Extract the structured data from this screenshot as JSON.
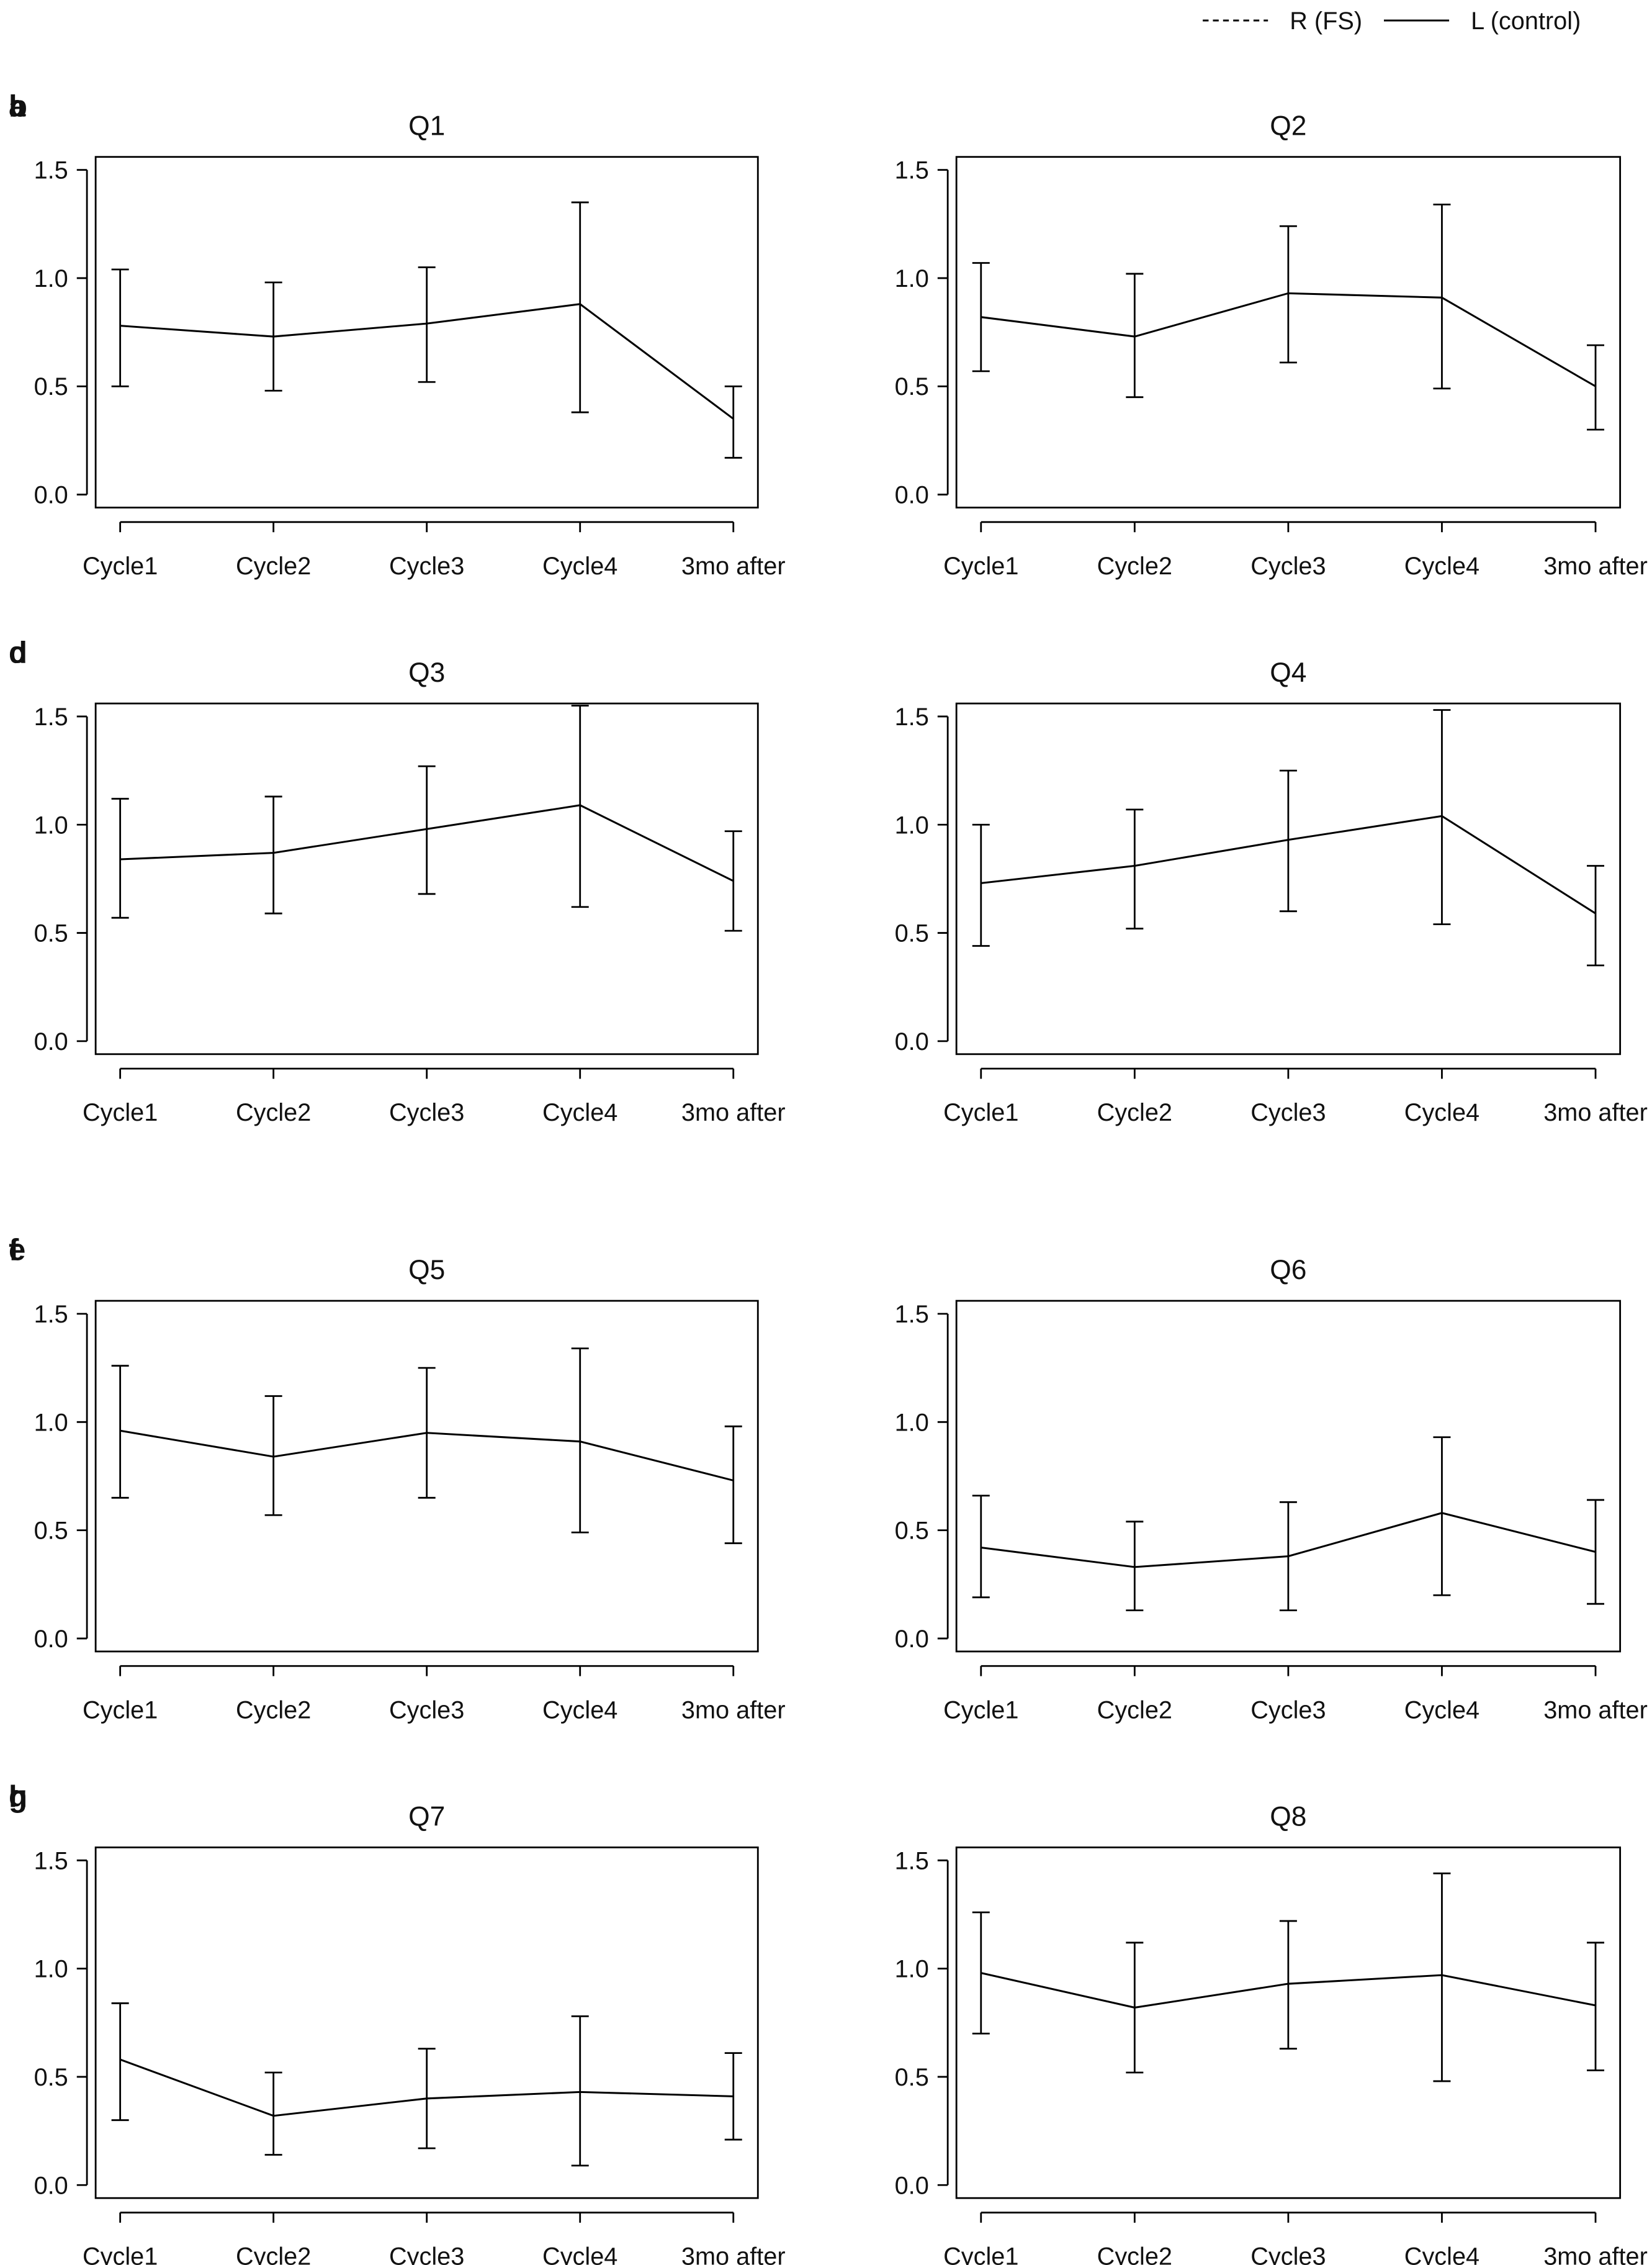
{
  "legend": [
    {
      "label": "R (FS)",
      "linestyle": "dashed"
    },
    {
      "label": "L (control)",
      "linestyle": "solid"
    }
  ],
  "chart_data": [
    {
      "type": "line",
      "panel": "a",
      "title": "Q1",
      "categories": [
        "Cycle1",
        "Cycle2",
        "Cycle3",
        "Cycle4",
        "3mo after"
      ],
      "color": "#000000",
      "values": [
        0.78,
        0.73,
        0.79,
        0.88,
        0.35
      ],
      "lower": [
        0.5,
        0.48,
        0.52,
        0.38,
        0.17
      ],
      "upper": [
        1.04,
        0.98,
        1.05,
        1.35,
        0.5
      ],
      "ylim": [
        -0.06,
        1.56
      ],
      "yticks": [
        {
          "value": 0,
          "label": "0.0"
        },
        0.5,
        {
          "value": 1,
          "label": "1.0"
        },
        1.5
      ]
    },
    {
      "type": "line",
      "panel": "b",
      "title": "Q2",
      "categories": [
        "Cycle1",
        "Cycle2",
        "Cycle3",
        "Cycle4",
        "3mo after"
      ],
      "color": "#000000",
      "values": [
        0.82,
        0.73,
        0.93,
        0.91,
        0.5
      ],
      "lower": [
        0.57,
        0.45,
        0.61,
        0.49,
        0.3
      ],
      "upper": [
        1.07,
        1.02,
        1.24,
        1.34,
        0.69
      ],
      "ylim": [
        -0.06,
        1.56
      ],
      "yticks": [
        {
          "value": 0,
          "label": "0.0"
        },
        0.5,
        {
          "value": 1,
          "label": "1.0"
        },
        1.5
      ]
    },
    {
      "type": "line",
      "panel": "c",
      "title": "Q3",
      "categories": [
        "Cycle1",
        "Cycle2",
        "Cycle3",
        "Cycle4",
        "3mo after"
      ],
      "color": "#000000",
      "values": [
        0.84,
        0.87,
        0.98,
        1.09,
        0.74
      ],
      "lower": [
        0.57,
        0.59,
        0.68,
        0.62,
        0.51
      ],
      "upper": [
        1.12,
        1.13,
        1.27,
        1.55,
        0.97
      ],
      "ylim": [
        -0.06,
        1.56
      ],
      "yticks": [
        {
          "value": 0,
          "label": "0.0"
        },
        0.5,
        {
          "value": 1,
          "label": "1.0"
        },
        1.5
      ]
    },
    {
      "type": "line",
      "panel": "d",
      "title": "Q4",
      "categories": [
        "Cycle1",
        "Cycle2",
        "Cycle3",
        "Cycle4",
        "3mo after"
      ],
      "color": "#000000",
      "values": [
        0.73,
        0.81,
        0.93,
        1.04,
        0.59
      ],
      "lower": [
        0.44,
        0.52,
        0.6,
        0.54,
        0.35
      ],
      "upper": [
        1.0,
        1.07,
        1.25,
        1.53,
        0.81
      ],
      "ylim": [
        -0.06,
        1.56
      ],
      "yticks": [
        {
          "value": 0,
          "label": "0.0"
        },
        0.5,
        {
          "value": 1,
          "label": "1.0"
        },
        1.5
      ]
    },
    {
      "type": "line",
      "panel": "e",
      "title": "Q5",
      "categories": [
        "Cycle1",
        "Cycle2",
        "Cycle3",
        "Cycle4",
        "3mo after"
      ],
      "color": "#000000",
      "values": [
        0.96,
        0.84,
        0.95,
        0.91,
        0.73
      ],
      "lower": [
        0.65,
        0.57,
        0.65,
        0.49,
        0.44
      ],
      "upper": [
        1.26,
        1.12,
        1.25,
        1.34,
        0.98
      ],
      "ylim": [
        -0.06,
        1.56
      ],
      "yticks": [
        {
          "value": 0,
          "label": "0.0"
        },
        0.5,
        {
          "value": 1,
          "label": "1.0"
        },
        1.5
      ]
    },
    {
      "type": "line",
      "panel": "f",
      "title": "Q6",
      "categories": [
        "Cycle1",
        "Cycle2",
        "Cycle3",
        "Cycle4",
        "3mo after"
      ],
      "color": "#000000",
      "values": [
        0.42,
        0.33,
        0.38,
        0.58,
        0.4
      ],
      "lower": [
        0.19,
        0.13,
        0.13,
        0.2,
        0.16
      ],
      "upper": [
        0.66,
        0.54,
        0.63,
        0.93,
        0.64
      ],
      "ylim": [
        -0.06,
        1.56
      ],
      "yticks": [
        {
          "value": 0,
          "label": "0.0"
        },
        0.5,
        {
          "value": 1,
          "label": "1.0"
        },
        1.5
      ]
    },
    {
      "type": "line",
      "panel": "g",
      "title": "Q7",
      "categories": [
        "Cycle1",
        "Cycle2",
        "Cycle3",
        "Cycle4",
        "3mo after"
      ],
      "color": "#000000",
      "values": [
        0.58,
        0.32,
        0.4,
        0.43,
        0.41
      ],
      "lower": [
        0.3,
        0.14,
        0.17,
        0.09,
        0.21
      ],
      "upper": [
        0.84,
        0.52,
        0.63,
        0.78,
        0.61
      ],
      "ylim": [
        -0.06,
        1.56
      ],
      "yticks": [
        {
          "value": 0,
          "label": "0.0"
        },
        0.5,
        {
          "value": 1,
          "label": "1.0"
        },
        1.5
      ]
    },
    {
      "type": "line",
      "panel": "h",
      "title": "Q8",
      "categories": [
        "Cycle1",
        "Cycle2",
        "Cycle3",
        "Cycle4",
        "3mo after"
      ],
      "color": "#000000",
      "values": [
        0.98,
        0.82,
        0.93,
        0.97,
        0.83
      ],
      "lower": [
        0.7,
        0.52,
        0.63,
        0.48,
        0.53
      ],
      "upper": [
        1.26,
        1.12,
        1.22,
        1.44,
        1.12
      ],
      "ylim": [
        -0.06,
        1.56
      ],
      "yticks": [
        {
          "value": 0,
          "label": "0.0"
        },
        0.5,
        {
          "value": 1,
          "label": "1.0"
        },
        1.5
      ]
    }
  ]
}
